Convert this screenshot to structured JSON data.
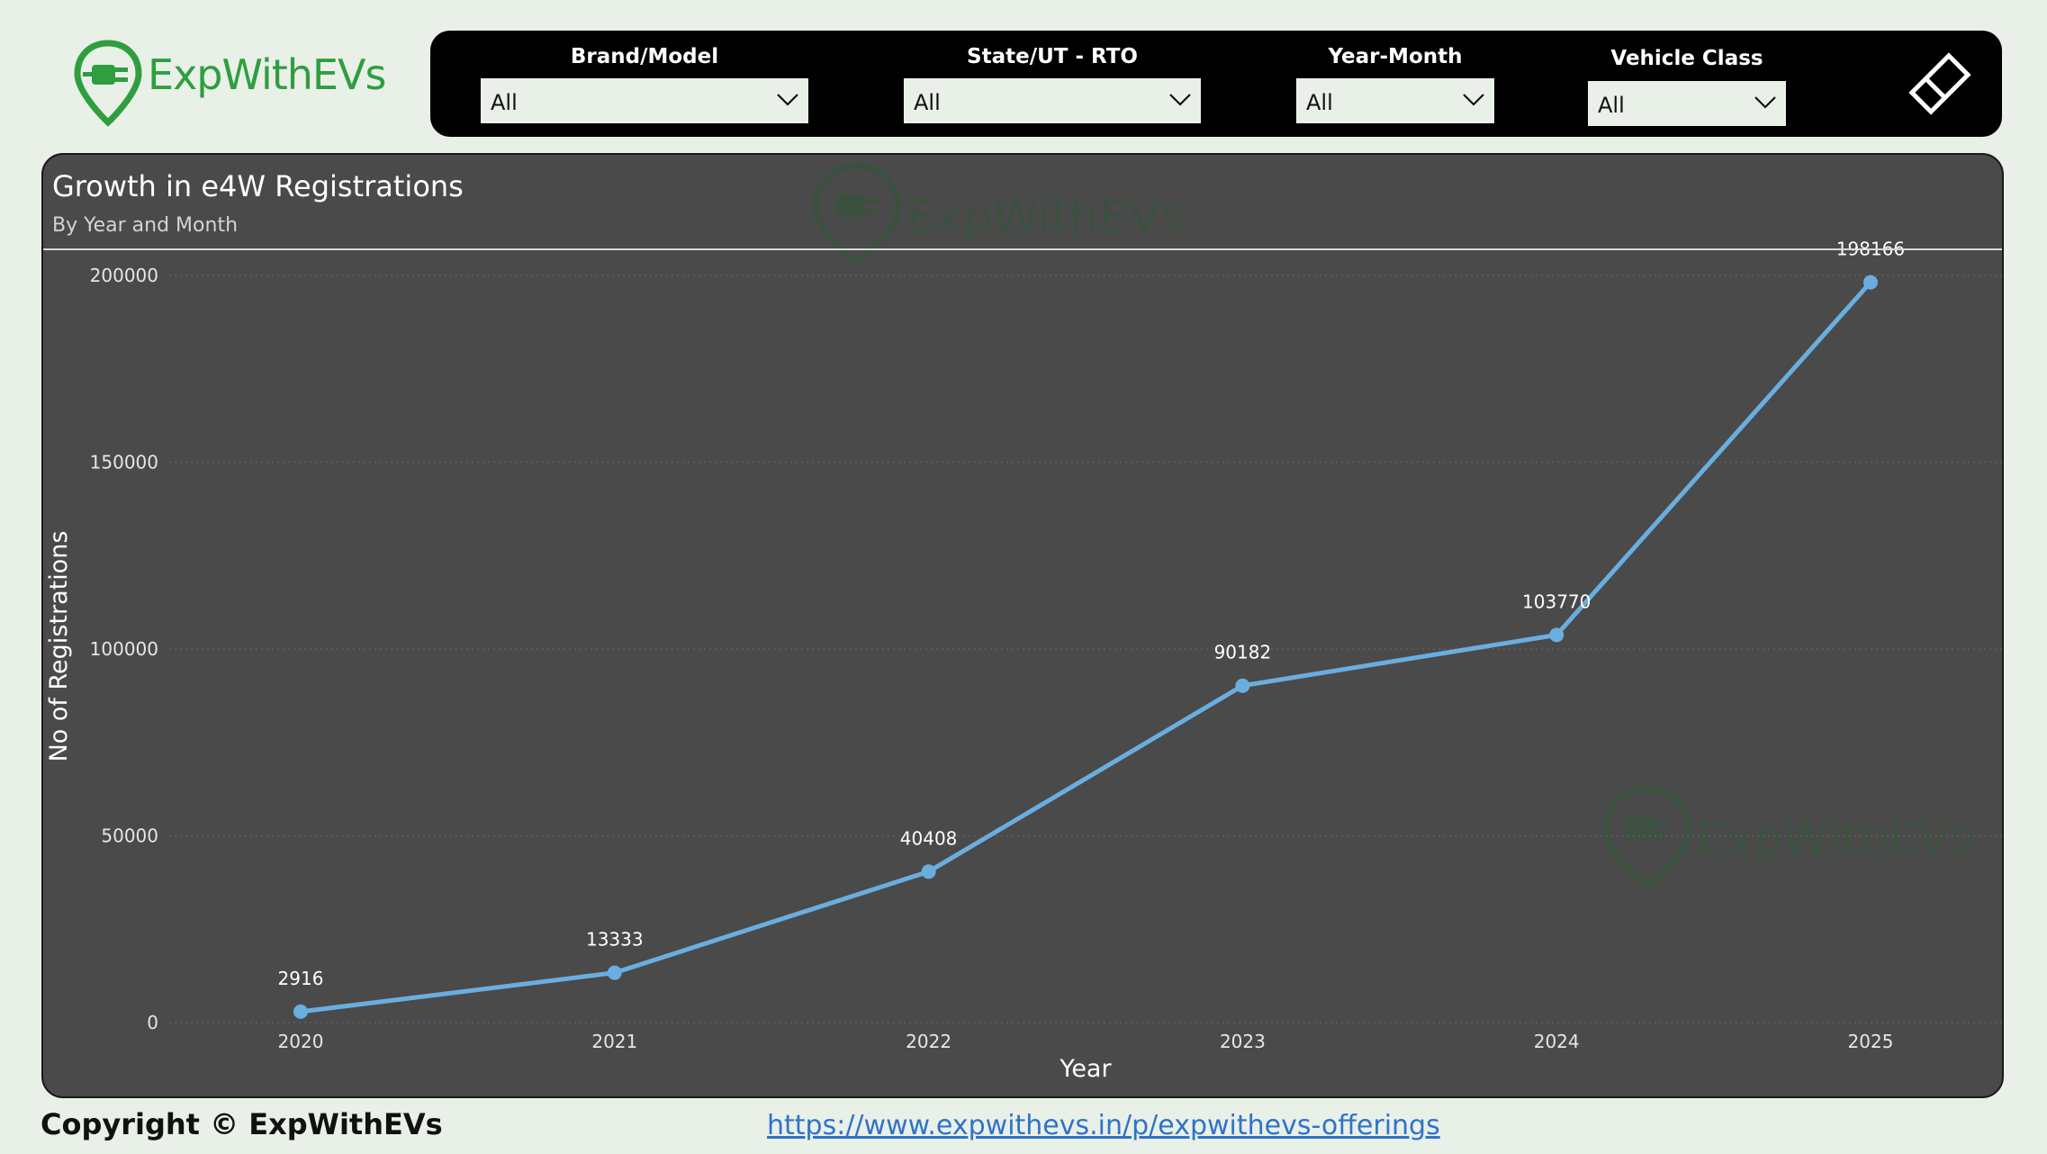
{
  "brand": {
    "logo_text": "ExpWithEVs",
    "logo_icon": "ev-plug-pin-icon",
    "accent_color": "#2f9e3f"
  },
  "filters": {
    "brand_model": {
      "label": "Brand/Model",
      "value": "All"
    },
    "state_rto": {
      "label": "State/UT - RTO",
      "value": "All"
    },
    "year_month": {
      "label": "Year-Month",
      "value": "All"
    },
    "vehicle_class": {
      "label": "Vehicle Class",
      "value": "All"
    },
    "clear_icon": "eraser-icon"
  },
  "card": {
    "title": "Growth in e4W Registrations",
    "subtitle": "By Year and Month",
    "watermark_text": "ExpWithEVs"
  },
  "chart_data": {
    "type": "line",
    "title": "Growth in e4W Registrations",
    "subtitle": "By Year and Month",
    "xlabel": "Year",
    "ylabel": "No of Registrations",
    "categories": [
      "2020",
      "2021",
      "2022",
      "2023",
      "2024",
      "2025"
    ],
    "series": [
      {
        "values": [
          2916,
          13333,
          40408,
          90182,
          103770,
          198166
        ],
        "color": "#6aaee0"
      }
    ],
    "data_labels": [
      "2916",
      "13333",
      "40408",
      "90182",
      "103770",
      "198166"
    ],
    "yticks": [
      "0",
      "50000",
      "100000",
      "150000",
      "200000"
    ],
    "ylim": [
      0,
      200000
    ],
    "grid": true,
    "legend": "none"
  },
  "footer": {
    "copyright": "Copyright © ExpWithEVs",
    "link": "https://www.expwithevs.in/p/expwithevs-offerings"
  }
}
